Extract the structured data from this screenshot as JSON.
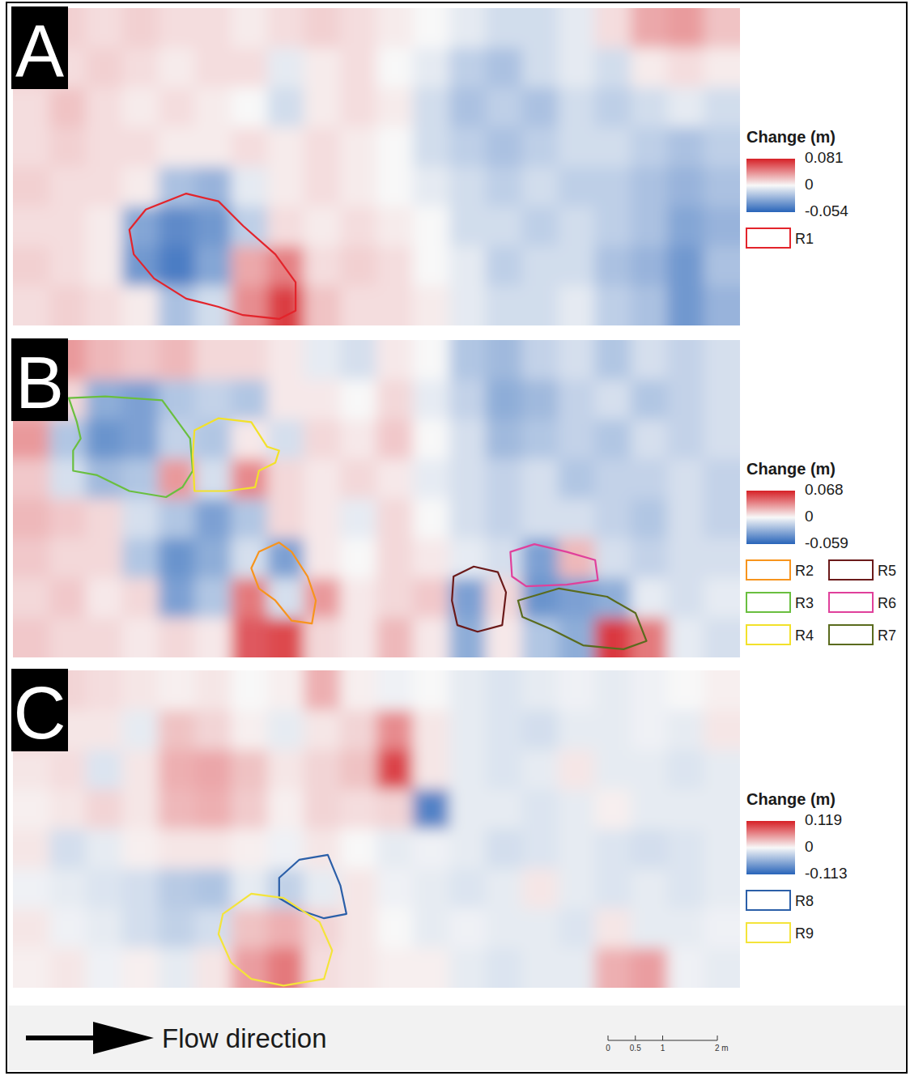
{
  "chart_data": [
    {
      "type": "heatmap",
      "label": "A",
      "xlim": [
        0,
        13.3
      ],
      "ylim": [
        0,
        5.8
      ],
      "legend": "right",
      "colorbar": {
        "title": "Change (m)",
        "range": [
          -0.054,
          0.081
        ],
        "ticks": [
          0.081,
          0,
          -0.054
        ]
      },
      "cells": [
        [
          0.01,
          0.015,
          0.01,
          0.015,
          0.01,
          0.01,
          0.005,
          0.01,
          0.015,
          0.01,
          0.005,
          0,
          -0.005,
          -0.01,
          -0.01,
          -0.005,
          0.01,
          0.03,
          0.035,
          0.02
        ],
        [
          0.015,
          0.01,
          0.015,
          0.01,
          0.005,
          0.01,
          0.01,
          -0.005,
          0.005,
          0.01,
          0,
          -0.005,
          -0.015,
          -0.02,
          -0.01,
          -0.005,
          -0.01,
          0.005,
          0.01,
          0.005
        ],
        [
          0.01,
          0.02,
          0.01,
          0.005,
          0.01,
          0.005,
          0,
          -0.01,
          0.005,
          0.01,
          0.005,
          -0.01,
          -0.02,
          -0.015,
          -0.02,
          -0.01,
          -0.015,
          -0.01,
          -0.005,
          -0.01
        ],
        [
          0.01,
          0.015,
          0.01,
          0.01,
          0.005,
          0.005,
          0.01,
          0.005,
          0.01,
          0.005,
          0,
          -0.01,
          -0.015,
          -0.02,
          -0.015,
          -0.01,
          -0.01,
          -0.015,
          -0.02,
          -0.015
        ],
        [
          0.015,
          0.01,
          0.01,
          0.005,
          -0.02,
          -0.025,
          -0.005,
          0.005,
          0.01,
          0.005,
          0,
          -0.005,
          -0.01,
          -0.015,
          -0.01,
          -0.015,
          -0.015,
          -0.02,
          -0.025,
          -0.02
        ],
        [
          0.01,
          0.01,
          0.005,
          -0.03,
          -0.04,
          -0.035,
          -0.015,
          0.01,
          0.005,
          0.01,
          0.005,
          0,
          -0.01,
          -0.01,
          -0.015,
          -0.01,
          -0.015,
          -0.02,
          -0.03,
          -0.025
        ],
        [
          0.015,
          0.01,
          0.005,
          -0.035,
          -0.045,
          -0.03,
          0.03,
          0.045,
          0.01,
          0.015,
          0.01,
          0,
          -0.005,
          -0.015,
          -0.01,
          -0.01,
          -0.02,
          -0.025,
          -0.035,
          -0.02
        ],
        [
          0.01,
          0.015,
          0.01,
          0.005,
          -0.02,
          -0.01,
          0.04,
          0.07,
          0.02,
          0.01,
          0.01,
          0.005,
          -0.005,
          -0.01,
          -0.01,
          -0.005,
          -0.015,
          -0.02,
          -0.035,
          -0.025
        ]
      ],
      "regions": [
        {
          "name": "R1",
          "color": "#e3242b",
          "x": [
            2.13,
            2.43,
            3.17,
            3.76,
            4.21,
            4.8,
            5.17,
            5.17,
            4.87,
            4.21,
            3.76,
            3.17,
            2.58,
            2.21
          ],
          "y": [
            1.75,
            2.12,
            2.41,
            2.27,
            1.82,
            1.3,
            0.79,
            0.27,
            0.12,
            0.19,
            0.34,
            0.49,
            0.86,
            1.3
          ]
        }
      ]
    },
    {
      "type": "heatmap",
      "label": "B",
      "xlim": [
        0,
        13.3
      ],
      "ylim": [
        0,
        5.8
      ],
      "legend": "right",
      "colorbar": {
        "title": "Change (m)",
        "range": [
          -0.059,
          0.068
        ],
        "ticks": [
          0.068,
          0,
          -0.059
        ]
      },
      "cells": [
        [
          0.02,
          0.03,
          0.02,
          0.015,
          0.02,
          0.01,
          0.01,
          0.005,
          -0.005,
          -0.01,
          0.005,
          0,
          -0.02,
          -0.025,
          -0.015,
          -0.01,
          -0.02,
          -0.01,
          -0.015,
          -0.01
        ],
        [
          0.02,
          0.01,
          -0.03,
          -0.035,
          -0.02,
          -0.015,
          -0.02,
          0.005,
          0.005,
          0,
          0.01,
          -0.005,
          -0.015,
          -0.03,
          -0.025,
          -0.015,
          -0.01,
          -0.02,
          -0.015,
          -0.01
        ],
        [
          0.03,
          -0.02,
          -0.04,
          -0.035,
          -0.015,
          -0.02,
          0.005,
          -0.01,
          0.01,
          0.005,
          0.015,
          0,
          -0.01,
          -0.025,
          -0.02,
          -0.015,
          -0.02,
          -0.01,
          -0.015,
          -0.01
        ],
        [
          0.015,
          -0.01,
          -0.025,
          -0.02,
          0.03,
          -0.01,
          0.035,
          0.01,
          0.005,
          0.01,
          0.005,
          -0.005,
          -0.01,
          -0.015,
          -0.01,
          -0.02,
          -0.015,
          -0.015,
          -0.01,
          -0.015
        ],
        [
          0.02,
          0.015,
          0.01,
          -0.01,
          -0.02,
          -0.035,
          -0.02,
          0.01,
          0.005,
          -0.005,
          0.01,
          0,
          -0.01,
          -0.015,
          -0.01,
          -0.01,
          -0.015,
          -0.02,
          -0.01,
          -0.015
        ],
        [
          0.015,
          0.01,
          0.01,
          -0.02,
          -0.04,
          -0.03,
          -0.01,
          -0.035,
          0.005,
          0,
          0.01,
          0.005,
          -0.005,
          -0.01,
          -0.035,
          0.02,
          -0.01,
          -0.015,
          -0.01,
          -0.01
        ],
        [
          0.01,
          0.015,
          0.005,
          0.01,
          -0.035,
          -0.02,
          0.04,
          -0.01,
          0.03,
          0.005,
          0.01,
          0.015,
          -0.035,
          0.01,
          -0.04,
          -0.035,
          -0.03,
          -0.005,
          -0.01,
          -0.005
        ],
        [
          0.015,
          0.01,
          0.01,
          0.005,
          0.01,
          0.005,
          0.05,
          0.055,
          0.01,
          0.005,
          0.02,
          0.005,
          -0.03,
          0.005,
          -0.02,
          -0.03,
          0.06,
          0.04,
          -0.005,
          -0.01
        ]
      ],
      "regions": [
        {
          "name": "R2",
          "color": "#f7941d",
          "x": [
            4.36,
            4.5,
            4.87,
            5.1,
            5.39,
            5.54,
            5.47,
            5.1,
            4.8,
            4.5
          ],
          "y": [
            1.63,
            1.93,
            2.1,
            1.93,
            1.48,
            1.04,
            0.62,
            0.67,
            1.04,
            1.26
          ]
        },
        {
          "name": "R3",
          "color": "#6abf3f",
          "x": [
            1.02,
            1.69,
            2.73,
            3.24,
            3.29,
            3.1,
            2.8,
            2.13,
            1.54,
            1.1,
            1.1,
            1.24,
            1.17
          ],
          "y": [
            4.74,
            4.77,
            4.7,
            4.0,
            3.41,
            3.11,
            2.93,
            3.04,
            3.33,
            3.41,
            3.78,
            4.0,
            4.3
          ]
        },
        {
          "name": "R4",
          "color": "#f2e12a",
          "x": [
            3.32,
            3.76,
            4.36,
            4.65,
            4.87,
            4.8,
            4.5,
            4.43,
            3.91,
            3.32,
            3.29
          ],
          "y": [
            4.15,
            4.37,
            4.3,
            3.85,
            3.78,
            3.56,
            3.41,
            3.11,
            3.04,
            3.04,
            3.7
          ]
        },
        {
          "name": "R5",
          "color": "#6b1a1a",
          "x": [
            8.06,
            8.43,
            8.87,
            9.02,
            8.95,
            8.5,
            8.13,
            8.03
          ],
          "y": [
            1.48,
            1.66,
            1.56,
            1.19,
            0.59,
            0.47,
            0.59,
            1.04
          ]
        },
        {
          "name": "R6",
          "color": "#e0409b",
          "x": [
            9.1,
            9.54,
            10.13,
            10.65,
            10.7,
            10.13,
            9.39,
            9.13
          ],
          "y": [
            1.93,
            2.07,
            1.93,
            1.78,
            1.41,
            1.33,
            1.3,
            1.48
          ]
        },
        {
          "name": "R7",
          "color": "#5a6b1e",
          "x": [
            9.24,
            9.99,
            10.87,
            11.39,
            11.59,
            11.17,
            10.43,
            9.84,
            9.32
          ],
          "y": [
            1.04,
            1.26,
            1.11,
            0.81,
            0.3,
            0.15,
            0.22,
            0.52,
            0.74
          ]
        }
      ]
    },
    {
      "type": "heatmap",
      "label": "C",
      "xlim": [
        0,
        13.3
      ],
      "ylim": [
        0,
        5.8
      ],
      "legend": "right",
      "colorbar": {
        "title": "Change (m)",
        "range": [
          -0.113,
          0.119
        ],
        "ticks": [
          0.119,
          0,
          -0.113
        ]
      },
      "cells": [
        [
          0.01,
          0.02,
          0.015,
          0.01,
          0.005,
          0.01,
          0,
          0.005,
          0.04,
          0.005,
          -0.005,
          0,
          -0.01,
          -0.015,
          -0.01,
          -0.005,
          -0.01,
          -0.005,
          0,
          0.005
        ],
        [
          0.02,
          0.01,
          0.01,
          -0.01,
          0.03,
          0.02,
          0.005,
          -0.01,
          0.01,
          0.02,
          0.06,
          0.01,
          -0.01,
          -0.015,
          -0.02,
          -0.01,
          -0.01,
          -0.005,
          -0.01,
          0.01
        ],
        [
          0.01,
          0.015,
          -0.015,
          0.01,
          0.04,
          0.045,
          0.03,
          0.01,
          0.02,
          0.03,
          0.1,
          0.01,
          -0.01,
          -0.015,
          -0.01,
          0.01,
          -0.01,
          -0.01,
          -0.015,
          -0.01
        ],
        [
          0.005,
          0.01,
          0.02,
          0.01,
          0.035,
          0.04,
          0.025,
          0.005,
          0.02,
          0.015,
          0.02,
          -0.09,
          -0.01,
          -0.01,
          -0.015,
          -0.01,
          0.005,
          -0.01,
          -0.01,
          -0.01
        ],
        [
          0.01,
          -0.02,
          -0.01,
          0.005,
          0.01,
          0.01,
          0.005,
          -0.005,
          0.01,
          0,
          -0.01,
          -0.005,
          -0.01,
          -0.02,
          -0.015,
          -0.01,
          -0.015,
          -0.02,
          -0.015,
          -0.01
        ],
        [
          -0.005,
          -0.01,
          -0.015,
          -0.02,
          -0.035,
          -0.04,
          -0.01,
          -0.03,
          -0.01,
          0.01,
          -0.005,
          -0.01,
          -0.015,
          -0.01,
          0.01,
          -0.01,
          -0.015,
          -0.01,
          -0.015,
          -0.01
        ],
        [
          0.01,
          -0.005,
          -0.01,
          -0.02,
          -0.03,
          -0.02,
          0.03,
          0.04,
          0.02,
          0.01,
          0,
          -0.01,
          -0.005,
          -0.01,
          -0.01,
          -0.015,
          0.01,
          -0.01,
          -0.01,
          -0.005
        ],
        [
          0.005,
          0.01,
          -0.005,
          0.005,
          -0.01,
          0.01,
          0.05,
          0.07,
          0.015,
          0.01,
          0.005,
          0.005,
          -0.01,
          -0.015,
          -0.01,
          -0.01,
          0.04,
          0.05,
          -0.005,
          -0.01
        ]
      ],
      "regions": [
        {
          "name": "R8",
          "color": "#2b5fa8",
          "x": [
            4.87,
            5.24,
            5.76,
            5.99,
            6.1,
            5.69,
            5.24,
            4.87
          ],
          "y": [
            2.01,
            2.34,
            2.43,
            1.87,
            1.35,
            1.27,
            1.42,
            1.64
          ]
        },
        {
          "name": "R9",
          "color": "#f4e43a",
          "x": [
            3.84,
            4.36,
            4.95,
            5.61,
            5.84,
            5.69,
            4.95,
            4.36,
            3.99,
            3.76
          ],
          "y": [
            1.35,
            1.72,
            1.64,
            1.2,
            0.68,
            0.16,
            0.04,
            0.16,
            0.46,
            0.98
          ]
        }
      ]
    }
  ],
  "flow_direction_label": "Flow direction",
  "scale_bar": {
    "ticks": [
      0,
      0.5,
      1,
      {
        "value": 2,
        "label": "2 m"
      }
    ]
  }
}
